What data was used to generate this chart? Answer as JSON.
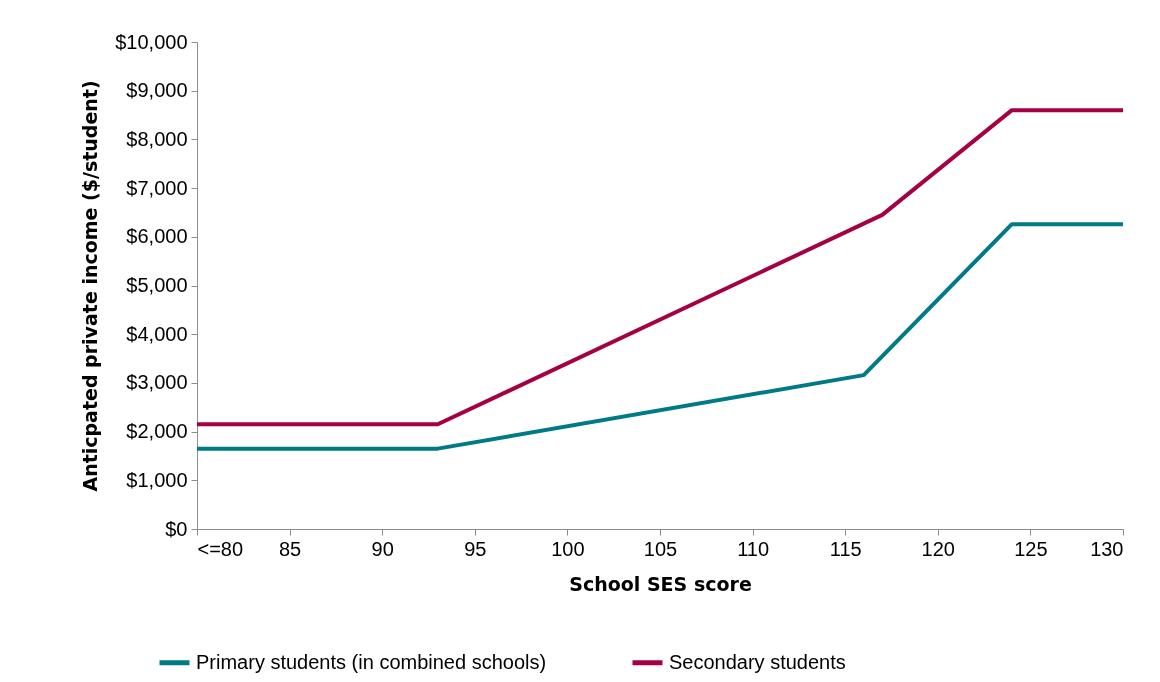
{
  "chart_data": {
    "type": "line",
    "xlabel": "School SES score",
    "ylabel": "Anticpated private income ($/student)",
    "xlim": [
      80,
      130
    ],
    "xticks": [
      {
        "value": 80,
        "label": "<=80"
      },
      85,
      90,
      95,
      100,
      105,
      110,
      115,
      120,
      125,
      130
    ],
    "ylim": [
      0,
      10000
    ],
    "yticks": [
      {
        "value": 0,
        "label": "$0"
      },
      {
        "value": 1000,
        "label": "$1,000"
      },
      {
        "value": 2000,
        "label": "$2,000"
      },
      {
        "value": 3000,
        "label": "$3,000"
      },
      {
        "value": 4000,
        "label": "$4,000"
      },
      {
        "value": 5000,
        "label": "$5,000"
      },
      {
        "value": 6000,
        "label": "$6,000"
      },
      {
        "value": 7000,
        "label": "$7,000"
      },
      {
        "value": 8000,
        "label": "$8,000"
      },
      {
        "value": 9000,
        "label": "$9,000"
      },
      {
        "value": 10000,
        "label": "$10,000"
      }
    ],
    "grid": false,
    "legend": "bottom",
    "marker": "none",
    "line_style": "solid",
    "series": [
      {
        "name": "Primary students (in combined schools)",
        "color": "#007a87",
        "x": [
          80,
          93,
          116,
          124,
          130
        ],
        "values": [
          1650,
          1650,
          3160,
          6260,
          6260
        ]
      },
      {
        "name": "Secondary students",
        "color": "#a50044",
        "x": [
          80,
          93,
          117,
          124,
          130
        ],
        "values": [
          2150,
          2150,
          6450,
          8600,
          8600
        ]
      }
    ]
  }
}
